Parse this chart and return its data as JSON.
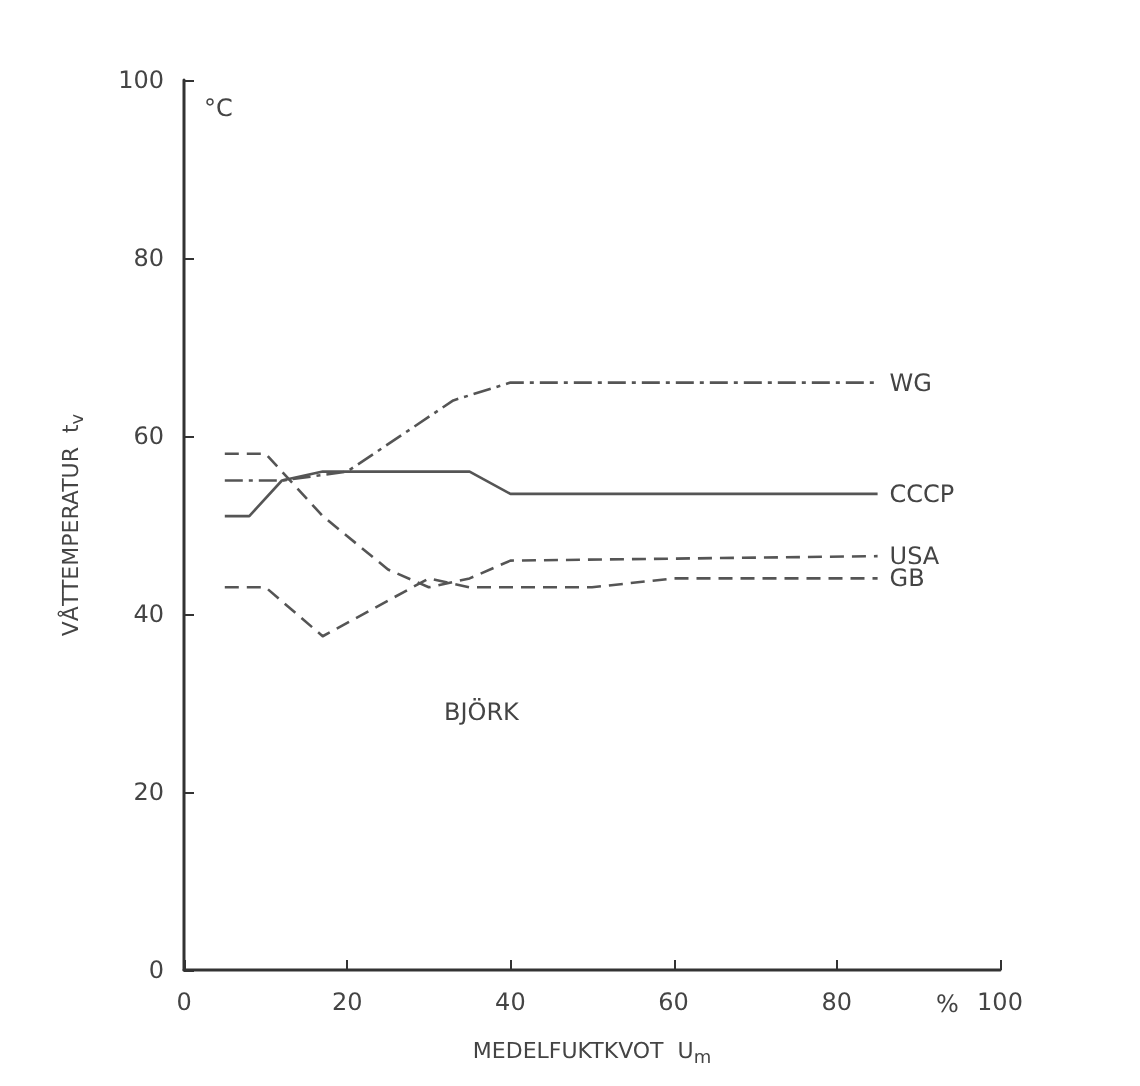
{
  "chart_data": {
    "type": "line",
    "xlabel": "MEDELFUKTKVOT  U$_{m}$",
    "ylabel": "VÅTTEMPERATUR  t$_{v}$",
    "xlim": [
      0,
      100
    ],
    "xticks": [
      0,
      20,
      40,
      60,
      80,
      100
    ],
    "ylim": [
      0,
      100
    ],
    "yticks": [
      0,
      20,
      40,
      60,
      80,
      100
    ],
    "grid": false,
    "legend": false,
    "marker": "none",
    "annotations": [
      "BJÖRK",
      "°C",
      "%"
    ],
    "series": [
      {
        "name": "WG",
        "color": "#555555",
        "line_style": "dashdot",
        "x": [
          5,
          12,
          20,
          33,
          40,
          85
        ],
        "values": [
          55,
          55,
          56,
          64,
          66,
          66
        ]
      },
      {
        "name": "CCCP",
        "color": "#555555",
        "line_style": "solid",
        "x": [
          5,
          8,
          12,
          17,
          35,
          40,
          85
        ],
        "values": [
          51,
          51,
          55,
          56,
          56,
          53.5,
          53.5
        ]
      },
      {
        "name": "USA",
        "color": "#555555",
        "line_style": "dashed",
        "x": [
          5,
          10,
          17,
          25,
          30,
          35,
          40,
          85
        ],
        "values": [
          58,
          58,
          51,
          45,
          43,
          44,
          46,
          46.5
        ]
      },
      {
        "name": "GB",
        "color": "#555555",
        "line_style": "dashed",
        "x": [
          5,
          10,
          17,
          30,
          35,
          50,
          60,
          85
        ],
        "values": [
          43,
          43,
          37.5,
          44,
          43,
          43,
          44,
          44
        ]
      }
    ]
  }
}
